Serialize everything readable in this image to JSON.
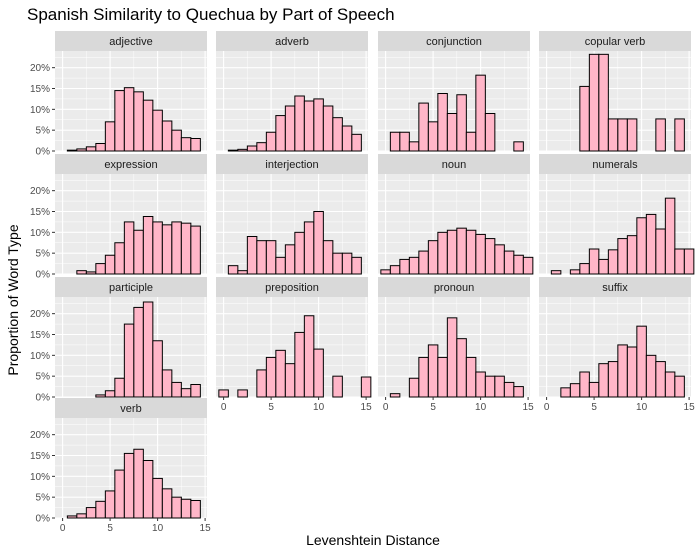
{
  "chart_data": {
    "type": "bar",
    "title": "Spanish Similarity to Quechua by Part of Speech",
    "xlabel": "Levenshtein Distance",
    "ylabel": "Proportion of Word Type",
    "x_ticks": [
      0,
      5,
      10,
      15
    ],
    "y_ticks": [
      "0%",
      "5%",
      "10%",
      "15%",
      "20%"
    ],
    "xlim": [
      -0.8,
      15.2
    ],
    "ylim": [
      0,
      0.24
    ],
    "bin_width": 1,
    "colors": {
      "fill": "#ffb6c8",
      "stroke": "#000000",
      "panel": "#ebebeb",
      "strip": "#d9d9d9",
      "grid": "#ffffff"
    },
    "facets": [
      {
        "name": "adjective",
        "values": [
          0.0,
          0.002,
          0.005,
          0.01,
          0.018,
          0.07,
          0.145,
          0.152,
          0.142,
          0.122,
          0.098,
          0.072,
          0.05,
          0.032,
          0.03
        ]
      },
      {
        "name": "adverb",
        "values": [
          0.0,
          0.002,
          0.004,
          0.012,
          0.02,
          0.045,
          0.085,
          0.108,
          0.132,
          0.12,
          0.125,
          0.108,
          0.08,
          0.06,
          0.04
        ]
      },
      {
        "name": "conjunction",
        "values": [
          0.0,
          0.045,
          0.045,
          0.022,
          0.115,
          0.07,
          0.138,
          0.09,
          0.135,
          0.045,
          0.182,
          0.09,
          0.0,
          0.0,
          0.022
        ]
      },
      {
        "name": "copular verb",
        "values": [
          0.0,
          0.0,
          0.0,
          0.0,
          0.155,
          0.232,
          0.232,
          0.077,
          0.077,
          0.077,
          0.0,
          0.0,
          0.077,
          0.0,
          0.077
        ]
      },
      {
        "name": "expression",
        "values": [
          0.0,
          0.0,
          0.008,
          0.005,
          0.025,
          0.045,
          0.075,
          0.125,
          0.105,
          0.138,
          0.125,
          0.118,
          0.125,
          0.122,
          0.115
        ]
      },
      {
        "name": "interjection",
        "values": [
          0.0,
          0.02,
          0.008,
          0.09,
          0.08,
          0.08,
          0.04,
          0.07,
          0.1,
          0.125,
          0.15,
          0.08,
          0.05,
          0.05,
          0.04
        ]
      },
      {
        "name": "noun",
        "values": [
          0.01,
          0.02,
          0.035,
          0.04,
          0.055,
          0.08,
          0.1,
          0.105,
          0.11,
          0.105,
          0.095,
          0.085,
          0.07,
          0.055,
          0.045,
          0.04
        ]
      },
      {
        "name": "numerals",
        "values": [
          0.0,
          0.008,
          0.0,
          0.01,
          0.025,
          0.06,
          0.035,
          0.058,
          0.085,
          0.092,
          0.135,
          0.143,
          0.108,
          0.182,
          0.06,
          0.06
        ]
      },
      {
        "name": "participle",
        "values": [
          0.0,
          0.0,
          0.0,
          0.0,
          0.005,
          0.015,
          0.045,
          0.175,
          0.215,
          0.228,
          0.135,
          0.065,
          0.035,
          0.02,
          0.03
        ]
      },
      {
        "name": "preposition",
        "values": [
          0.017,
          0.0,
          0.017,
          0.0,
          0.065,
          0.095,
          0.112,
          0.08,
          0.155,
          0.195,
          0.115,
          0.0,
          0.05,
          0.0,
          0.0,
          0.048
        ]
      },
      {
        "name": "pronoun",
        "values": [
          0.0,
          0.008,
          0.0,
          0.045,
          0.095,
          0.125,
          0.095,
          0.19,
          0.14,
          0.095,
          0.06,
          0.05,
          0.05,
          0.035,
          0.025
        ]
      },
      {
        "name": "suffix",
        "values": [
          0.0,
          0.0,
          0.022,
          0.032,
          0.06,
          0.035,
          0.08,
          0.085,
          0.125,
          0.12,
          0.17,
          0.1,
          0.085,
          0.06,
          0.05
        ]
      },
      {
        "name": "verb",
        "values": [
          0.0,
          0.005,
          0.01,
          0.025,
          0.04,
          0.065,
          0.115,
          0.155,
          0.165,
          0.138,
          0.095,
          0.07,
          0.05,
          0.045,
          0.042
        ]
      }
    ]
  }
}
